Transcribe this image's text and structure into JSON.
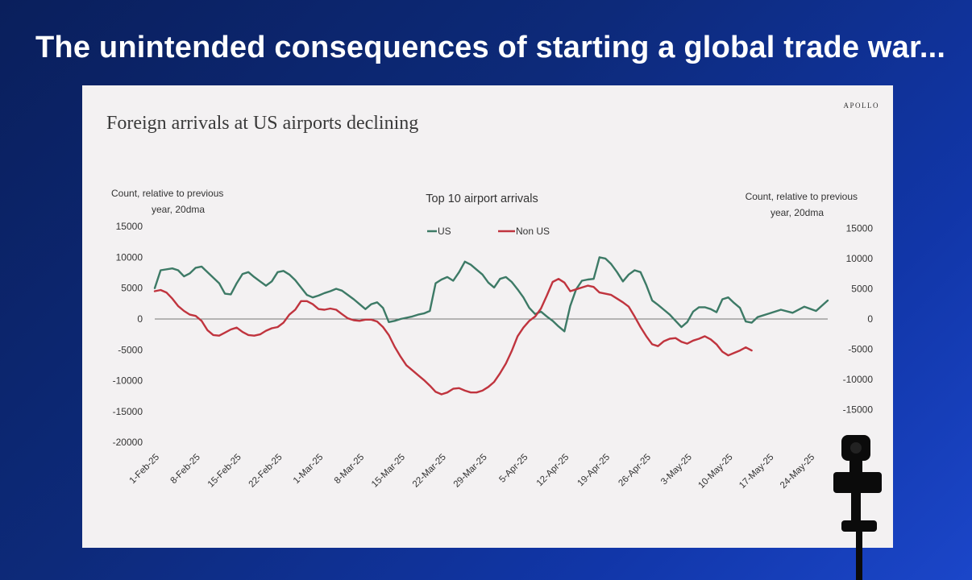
{
  "slide": {
    "title": "The unintended consequences of starting a global trade war..."
  },
  "brand": "APOLLO",
  "chart_data": {
    "type": "line",
    "title": "Foreign arrivals at US airports declining",
    "subtitle": "Top 10 airport arrivals",
    "ylabel_left": "Count, relative to previous year, 20dma",
    "ylabel_right": "Count, relative to previous year, 20dma",
    "ylim_left": [
      -20000,
      15000
    ],
    "ylim_right": [
      -15000,
      15000
    ],
    "yticks_left": [
      15000,
      10000,
      5000,
      0,
      -5000,
      -10000,
      -15000,
      -20000
    ],
    "yticks_right": [
      15000,
      10000,
      5000,
      0,
      -5000,
      -10000,
      -15000
    ],
    "legend": "top-center",
    "grid": false,
    "x_start": "1-Feb-25",
    "x_end": "27-May-25",
    "x_tick_labels": [
      "1-Feb-25",
      "8-Feb-25",
      "15-Feb-25",
      "22-Feb-25",
      "1-Mar-25",
      "8-Mar-25",
      "15-Mar-25",
      "22-Mar-25",
      "29-Mar-25",
      "5-Apr-25",
      "12-Apr-25",
      "19-Apr-25",
      "26-Apr-25",
      "3-May-25",
      "10-May-25",
      "17-May-25",
      "24-May-25"
    ],
    "series": [
      {
        "name": "US",
        "color": "#3d7a66",
        "axis": "left",
        "points": [
          [
            "1-Feb-25",
            5000
          ],
          [
            "2-Feb-25",
            7900
          ],
          [
            "4-Feb-25",
            8200
          ],
          [
            "5-Feb-25",
            7900
          ],
          [
            "6-Feb-25",
            6900
          ],
          [
            "7-Feb-25",
            7400
          ],
          [
            "8-Feb-25",
            8300
          ],
          [
            "9-Feb-25",
            8500
          ],
          [
            "10-Feb-25",
            7600
          ],
          [
            "12-Feb-25",
            5800
          ],
          [
            "13-Feb-25",
            4100
          ],
          [
            "14-Feb-25",
            4000
          ],
          [
            "15-Feb-25",
            5800
          ],
          [
            "16-Feb-25",
            7300
          ],
          [
            "17-Feb-25",
            7600
          ],
          [
            "18-Feb-25",
            6800
          ],
          [
            "19-Feb-25",
            6100
          ],
          [
            "20-Feb-25",
            5400
          ],
          [
            "21-Feb-25",
            6100
          ],
          [
            "22-Feb-25",
            7600
          ],
          [
            "23-Feb-25",
            7800
          ],
          [
            "24-Feb-25",
            7200
          ],
          [
            "25-Feb-25",
            6300
          ],
          [
            "26-Feb-25",
            5100
          ],
          [
            "27-Feb-25",
            3900
          ],
          [
            "28-Feb-25",
            3500
          ],
          [
            "1-Mar-25",
            3800
          ],
          [
            "2-Mar-25",
            4200
          ],
          [
            "3-Mar-25",
            4500
          ],
          [
            "4-Mar-25",
            4900
          ],
          [
            "5-Mar-25",
            4600
          ],
          [
            "6-Mar-25",
            3900
          ],
          [
            "7-Mar-25",
            3200
          ],
          [
            "8-Mar-25",
            2400
          ],
          [
            "9-Mar-25",
            1600
          ],
          [
            "10-Mar-25",
            2400
          ],
          [
            "11-Mar-25",
            2700
          ],
          [
            "12-Mar-25",
            1800
          ],
          [
            "13-Mar-25",
            -500
          ],
          [
            "14-Mar-25",
            -300
          ],
          [
            "15-Mar-25",
            0
          ],
          [
            "17-Mar-25",
            400
          ],
          [
            "18-Mar-25",
            700
          ],
          [
            "19-Mar-25",
            900
          ],
          [
            "20-Mar-25",
            1300
          ],
          [
            "21-Mar-25",
            5800
          ],
          [
            "22-Mar-25",
            6400
          ],
          [
            "23-Mar-25",
            6800
          ],
          [
            "24-Mar-25",
            6200
          ],
          [
            "25-Mar-25",
            7600
          ],
          [
            "26-Mar-25",
            9300
          ],
          [
            "27-Mar-25",
            8800
          ],
          [
            "28-Mar-25",
            8000
          ],
          [
            "29-Mar-25",
            7200
          ],
          [
            "30-Mar-25",
            5900
          ],
          [
            "31-Mar-25",
            5100
          ],
          [
            "1-Apr-25",
            6500
          ],
          [
            "2-Apr-25",
            6800
          ],
          [
            "3-Apr-25",
            6000
          ],
          [
            "4-Apr-25",
            4800
          ],
          [
            "5-Apr-25",
            3500
          ],
          [
            "6-Apr-25",
            1800
          ],
          [
            "7-Apr-25",
            800
          ],
          [
            "8-Apr-25",
            1200
          ],
          [
            "9-Apr-25",
            400
          ],
          [
            "10-Apr-25",
            -300
          ],
          [
            "11-Apr-25",
            -1200
          ],
          [
            "12-Apr-25",
            -2000
          ],
          [
            "13-Apr-25",
            2100
          ],
          [
            "14-Apr-25",
            4800
          ],
          [
            "15-Apr-25",
            6200
          ],
          [
            "16-Apr-25",
            6400
          ],
          [
            "17-Apr-25",
            6500
          ],
          [
            "18-Apr-25",
            10000
          ],
          [
            "19-Apr-25",
            9800
          ],
          [
            "20-Apr-25",
            8900
          ],
          [
            "21-Apr-25",
            7600
          ],
          [
            "22-Apr-25",
            6100
          ],
          [
            "23-Apr-25",
            7200
          ],
          [
            "24-Apr-25",
            7900
          ],
          [
            "25-Apr-25",
            7600
          ],
          [
            "26-Apr-25",
            5500
          ],
          [
            "27-Apr-25",
            3000
          ],
          [
            "28-Apr-25",
            2300
          ],
          [
            "29-Apr-25",
            1500
          ],
          [
            "30-Apr-25",
            700
          ],
          [
            "1-May-25",
            -300
          ],
          [
            "2-May-25",
            -1300
          ],
          [
            "3-May-25",
            -500
          ],
          [
            "4-May-25",
            1200
          ],
          [
            "5-May-25",
            1900
          ],
          [
            "6-May-25",
            1900
          ],
          [
            "7-May-25",
            1600
          ],
          [
            "8-May-25",
            1100
          ],
          [
            "9-May-25",
            3200
          ],
          [
            "10-May-25",
            3500
          ],
          [
            "11-May-25",
            2600
          ],
          [
            "12-May-25",
            1800
          ],
          [
            "13-May-25",
            -400
          ],
          [
            "14-May-25",
            -600
          ],
          [
            "15-May-25",
            300
          ],
          [
            "17-May-25",
            900
          ],
          [
            "19-May-25",
            1500
          ],
          [
            "21-May-25",
            1000
          ],
          [
            "23-May-25",
            2000
          ],
          [
            "25-May-25",
            1300
          ],
          [
            "27-May-25",
            3000
          ]
        ]
      },
      {
        "name": "Non US",
        "color": "#c0343e",
        "axis": "left",
        "points": [
          [
            "1-Feb-25",
            4500
          ],
          [
            "2-Feb-25",
            4700
          ],
          [
            "3-Feb-25",
            4300
          ],
          [
            "4-Feb-25",
            3300
          ],
          [
            "5-Feb-25",
            2100
          ],
          [
            "6-Feb-25",
            1300
          ],
          [
            "7-Feb-25",
            700
          ],
          [
            "8-Feb-25",
            500
          ],
          [
            "9-Feb-25",
            -300
          ],
          [
            "10-Feb-25",
            -1800
          ],
          [
            "11-Feb-25",
            -2600
          ],
          [
            "12-Feb-25",
            -2700
          ],
          [
            "13-Feb-25",
            -2200
          ],
          [
            "14-Feb-25",
            -1700
          ],
          [
            "15-Feb-25",
            -1400
          ],
          [
            "16-Feb-25",
            -2100
          ],
          [
            "17-Feb-25",
            -2600
          ],
          [
            "18-Feb-25",
            -2700
          ],
          [
            "19-Feb-25",
            -2500
          ],
          [
            "20-Feb-25",
            -1900
          ],
          [
            "21-Feb-25",
            -1500
          ],
          [
            "22-Feb-25",
            -1300
          ],
          [
            "23-Feb-25",
            -600
          ],
          [
            "24-Feb-25",
            700
          ],
          [
            "25-Feb-25",
            1500
          ],
          [
            "26-Feb-25",
            2900
          ],
          [
            "27-Feb-25",
            2900
          ],
          [
            "28-Feb-25",
            2400
          ],
          [
            "1-Mar-25",
            1600
          ],
          [
            "2-Mar-25",
            1500
          ],
          [
            "3-Mar-25",
            1700
          ],
          [
            "4-Mar-25",
            1500
          ],
          [
            "5-Mar-25",
            800
          ],
          [
            "6-Mar-25",
            100
          ],
          [
            "7-Mar-25",
            -200
          ],
          [
            "8-Mar-25",
            -300
          ],
          [
            "9-Mar-25",
            -100
          ],
          [
            "10-Mar-25",
            -100
          ],
          [
            "11-Mar-25",
            -400
          ],
          [
            "12-Mar-25",
            -1300
          ],
          [
            "13-Mar-25",
            -2600
          ],
          [
            "14-Mar-25",
            -4500
          ],
          [
            "15-Mar-25",
            -6100
          ],
          [
            "16-Mar-25",
            -7500
          ],
          [
            "17-Mar-25",
            -8300
          ],
          [
            "18-Mar-25",
            -9100
          ],
          [
            "19-Mar-25",
            -9900
          ],
          [
            "20-Mar-25",
            -10800
          ],
          [
            "21-Mar-25",
            -11800
          ],
          [
            "22-Mar-25",
            -12200
          ],
          [
            "23-Mar-25",
            -11900
          ],
          [
            "24-Mar-25",
            -11300
          ],
          [
            "25-Mar-25",
            -11200
          ],
          [
            "26-Mar-25",
            -11600
          ],
          [
            "27-Mar-25",
            -11900
          ],
          [
            "28-Mar-25",
            -11900
          ],
          [
            "29-Mar-25",
            -11600
          ],
          [
            "30-Mar-25",
            -11000
          ],
          [
            "31-Mar-25",
            -10200
          ],
          [
            "1-Apr-25",
            -8800
          ],
          [
            "2-Apr-25",
            -7200
          ],
          [
            "3-Apr-25",
            -5200
          ],
          [
            "4-Apr-25",
            -2800
          ],
          [
            "5-Apr-25",
            -1400
          ],
          [
            "6-Apr-25",
            -300
          ],
          [
            "7-Apr-25",
            400
          ],
          [
            "8-Apr-25",
            1700
          ],
          [
            "9-Apr-25",
            3800
          ],
          [
            "10-Apr-25",
            6000
          ],
          [
            "11-Apr-25",
            6500
          ],
          [
            "12-Apr-25",
            5900
          ],
          [
            "13-Apr-25",
            4500
          ],
          [
            "14-Apr-25",
            4800
          ],
          [
            "15-Apr-25",
            5100
          ],
          [
            "16-Apr-25",
            5400
          ],
          [
            "17-Apr-25",
            5200
          ],
          [
            "18-Apr-25",
            4300
          ],
          [
            "19-Apr-25",
            4100
          ],
          [
            "20-Apr-25",
            3900
          ],
          [
            "21-Apr-25",
            3300
          ],
          [
            "22-Apr-25",
            2700
          ],
          [
            "23-Apr-25",
            2000
          ],
          [
            "24-Apr-25",
            400
          ],
          [
            "25-Apr-25",
            -1300
          ],
          [
            "26-Apr-25",
            -2800
          ],
          [
            "27-Apr-25",
            -4100
          ],
          [
            "28-Apr-25",
            -4400
          ],
          [
            "29-Apr-25",
            -3600
          ],
          [
            "30-Apr-25",
            -3200
          ],
          [
            "1-May-25",
            -3100
          ],
          [
            "2-May-25",
            -3700
          ],
          [
            "3-May-25",
            -4000
          ],
          [
            "4-May-25",
            -3500
          ],
          [
            "5-May-25",
            -3200
          ],
          [
            "6-May-25",
            -2800
          ],
          [
            "7-May-25",
            -3300
          ],
          [
            "8-May-25",
            -4100
          ],
          [
            "9-May-25",
            -5300
          ],
          [
            "10-May-25",
            -5900
          ],
          [
            "11-May-25",
            -5500
          ],
          [
            "12-May-25",
            -5100
          ],
          [
            "13-May-25",
            -4600
          ],
          [
            "14-May-25",
            -5100
          ]
        ]
      }
    ]
  }
}
